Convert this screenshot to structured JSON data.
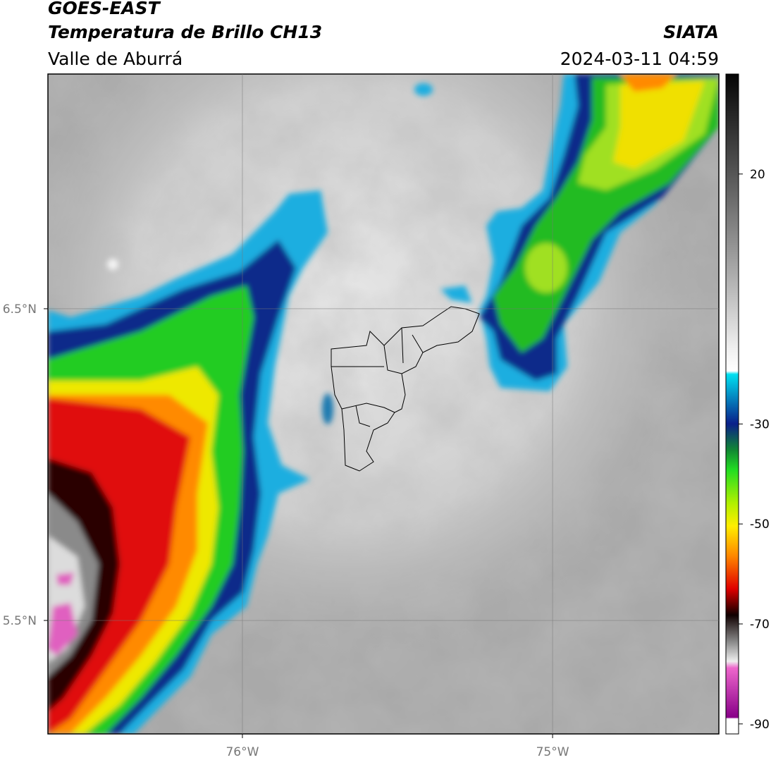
{
  "header": {
    "title": "GOES-EAST",
    "subtitle": "Temperatura de Brillo CH13",
    "region": "Valle de Aburrá",
    "source": "SIATA",
    "datetime": "2024-03-11 04:59"
  },
  "map": {
    "xlim": [
      -76.627,
      -74.464
    ],
    "ylim": [
      5.136,
      7.253
    ],
    "xticks": [
      {
        "value": -76,
        "label": "76°W"
      },
      {
        "value": -75,
        "label": "75°W"
      }
    ],
    "yticks": [
      {
        "value": 5.5,
        "label": "5.5°N"
      },
      {
        "value": 6.5,
        "label": "6.5°N"
      }
    ],
    "grid": true
  },
  "colorbar": {
    "lim": [
      -92,
      40
    ],
    "ticks": [
      20,
      -30,
      -50,
      -70,
      -90
    ]
  }
}
